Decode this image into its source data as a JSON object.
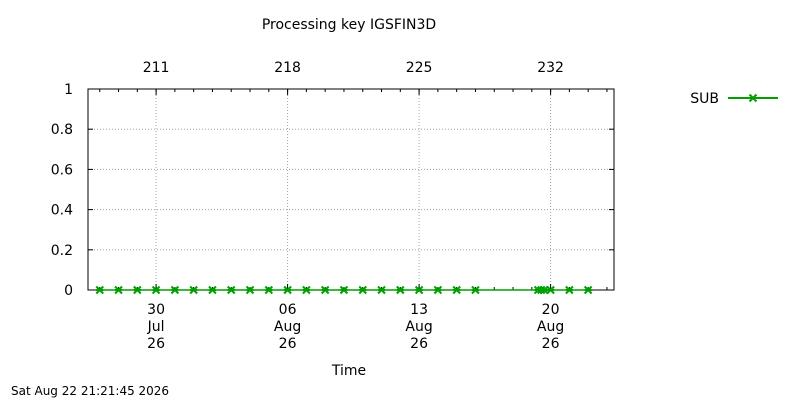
{
  "chart_data": {
    "type": "line",
    "title": "Processing key IGSFIN3D",
    "xlabel": "Time",
    "x_range": [
      "2026-07-26T09:00",
      "2026-08-23T09:00"
    ],
    "ylim": [
      0,
      1
    ],
    "y_ticks": [
      "0",
      "0.2",
      "0.4",
      "0.6",
      "0.8",
      "1"
    ],
    "bottom_ticks": [
      {
        "date": "2026-07-30",
        "day": "30",
        "month": "Jul",
        "year": "26"
      },
      {
        "date": "2026-08-06",
        "day": "06",
        "month": "Aug",
        "year": "26"
      },
      {
        "date": "2026-08-13",
        "day": "13",
        "month": "Aug",
        "year": "26"
      },
      {
        "date": "2026-08-20",
        "day": "20",
        "month": "Aug",
        "year": "26"
      }
    ],
    "top_ticks": [
      {
        "date": "2026-07-30",
        "label": "211"
      },
      {
        "date": "2026-08-06",
        "label": "218"
      },
      {
        "date": "2026-08-13",
        "label": "225"
      },
      {
        "date": "2026-08-20",
        "label": "232"
      }
    ],
    "grid": true,
    "legend_position": "top-right",
    "series": [
      {
        "name": "SUB",
        "color": "#00a000",
        "marker": "asterisk",
        "points": [
          {
            "x": "2026-07-27T00:00",
            "y": 0
          },
          {
            "x": "2026-07-28T00:00",
            "y": 0
          },
          {
            "x": "2026-07-29T00:00",
            "y": 0
          },
          {
            "x": "2026-07-30T00:00",
            "y": 0
          },
          {
            "x": "2026-07-31T00:00",
            "y": 0
          },
          {
            "x": "2026-08-01T00:00",
            "y": 0
          },
          {
            "x": "2026-08-02T00:00",
            "y": 0
          },
          {
            "x": "2026-08-03T00:00",
            "y": 0
          },
          {
            "x": "2026-08-04T00:00",
            "y": 0
          },
          {
            "x": "2026-08-05T00:00",
            "y": 0
          },
          {
            "x": "2026-08-06T00:00",
            "y": 0
          },
          {
            "x": "2026-08-07T00:00",
            "y": 0
          },
          {
            "x": "2026-08-08T00:00",
            "y": 0
          },
          {
            "x": "2026-08-09T00:00",
            "y": 0
          },
          {
            "x": "2026-08-10T00:00",
            "y": 0
          },
          {
            "x": "2026-08-11T00:00",
            "y": 0
          },
          {
            "x": "2026-08-12T00:00",
            "y": 0
          },
          {
            "x": "2026-08-13T00:00",
            "y": 0
          },
          {
            "x": "2026-08-14T00:00",
            "y": 0
          },
          {
            "x": "2026-08-15T00:00",
            "y": 0
          },
          {
            "x": "2026-08-16T00:00",
            "y": 0
          },
          {
            "x": "2026-08-19T08:00",
            "y": 0
          },
          {
            "x": "2026-08-19T12:00",
            "y": 0
          },
          {
            "x": "2026-08-19T16:00",
            "y": 0
          },
          {
            "x": "2026-08-20T00:00",
            "y": 0
          },
          {
            "x": "2026-08-21T00:00",
            "y": 0
          },
          {
            "x": "2026-08-22T00:00",
            "y": 0
          }
        ]
      }
    ],
    "footer_timestamp": "Sat Aug 22 21:21:45 2026"
  }
}
